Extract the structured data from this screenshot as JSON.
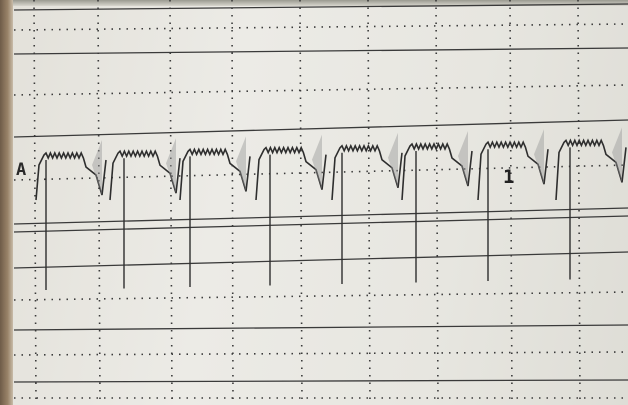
{
  "channel": {
    "label": "A"
  },
  "marker": {
    "label": "1"
  },
  "colors": {
    "grid_line": "#3a3a3a",
    "trace": "#2e2e2e",
    "background": "#e8e7e1"
  }
}
